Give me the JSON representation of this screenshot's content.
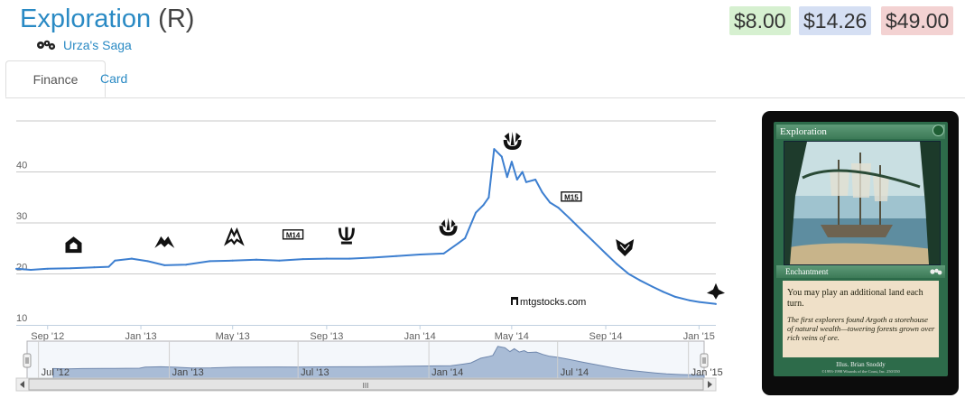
{
  "header": {
    "card_name": "Exploration",
    "rarity": "(R)",
    "set_name": "Urza's Saga",
    "set_icon": "urzas-saga-gears-icon"
  },
  "prices": {
    "low": "$8.00",
    "mid": "$14.26",
    "high": "$49.00",
    "colors": {
      "low": "#d6f0d0",
      "mid": "#d5dff3",
      "high": "#f3d2d2"
    }
  },
  "tabs": [
    "Finance",
    "Card"
  ],
  "card_image": {
    "name": "Exploration",
    "type_line": "Enchantment",
    "rules_text": "You may play an additional land each turn.",
    "flavor_text": "The first explorers found Argoth a storehouse of natural wealth—towering forests grown over rich veins of ore.",
    "illustrator": "Illus. Brian Snoddy",
    "copyright": "©1993-1998 Wizards of the Coast, Inc. 250/350",
    "frame_color": "green"
  },
  "chart_data": {
    "type": "line",
    "title": "",
    "xlabel": "",
    "ylabel": "",
    "xlim": [
      "2012-07-22",
      "2015-01-23"
    ],
    "ylim": [
      10,
      50
    ],
    "y_ticks": [
      10,
      20,
      30,
      40
    ],
    "x_ticks": [
      {
        "label": "Sep '12",
        "date": "2012-09-01"
      },
      {
        "label": "Jan '13",
        "date": "2013-01-01"
      },
      {
        "label": "May '13",
        "date": "2013-05-01"
      },
      {
        "label": "Sep '13",
        "date": "2013-09-01"
      },
      {
        "label": "Jan '14",
        "date": "2014-01-01"
      },
      {
        "label": "May '14",
        "date": "2014-05-01"
      },
      {
        "label": "Sep '14",
        "date": "2014-09-01"
      },
      {
        "label": "Jan '15",
        "date": "2015-01-01"
      }
    ],
    "grid": true,
    "line_color": "#3d7fd0",
    "series": [
      {
        "values": [
          [
            "2012-07-22",
            21.0
          ],
          [
            "2012-08-10",
            20.8
          ],
          [
            "2012-09-01",
            21.0
          ],
          [
            "2012-10-01",
            21.1
          ],
          [
            "2012-11-01",
            21.3
          ],
          [
            "2012-11-20",
            21.4
          ],
          [
            "2012-11-28",
            22.6
          ],
          [
            "2012-12-20",
            23.0
          ],
          [
            "2013-01-10",
            22.5
          ],
          [
            "2013-02-01",
            21.7
          ],
          [
            "2013-03-01",
            21.8
          ],
          [
            "2013-04-01",
            22.5
          ],
          [
            "2013-05-01",
            22.6
          ],
          [
            "2013-06-01",
            22.8
          ],
          [
            "2013-07-01",
            22.6
          ],
          [
            "2013-08-01",
            22.9
          ],
          [
            "2013-09-01",
            23.0
          ],
          [
            "2013-10-01",
            23.0
          ],
          [
            "2013-11-01",
            23.2
          ],
          [
            "2013-12-01",
            23.5
          ],
          [
            "2014-01-01",
            23.8
          ],
          [
            "2014-02-01",
            24.0
          ],
          [
            "2014-02-20",
            26.0
          ],
          [
            "2014-03-01",
            27.0
          ],
          [
            "2014-03-15",
            32.0
          ],
          [
            "2014-03-25",
            33.5
          ],
          [
            "2014-04-01",
            35.0
          ],
          [
            "2014-04-08",
            44.5
          ],
          [
            "2014-04-18",
            43.0
          ],
          [
            "2014-04-25",
            39.0
          ],
          [
            "2014-05-01",
            42.0
          ],
          [
            "2014-05-08",
            38.5
          ],
          [
            "2014-05-15",
            40.0
          ],
          [
            "2014-05-20",
            38.0
          ],
          [
            "2014-06-01",
            38.5
          ],
          [
            "2014-06-10",
            36.0
          ],
          [
            "2014-06-20",
            34.0
          ],
          [
            "2014-07-01",
            33.0
          ],
          [
            "2014-07-15",
            31.0
          ],
          [
            "2014-08-01",
            28.5
          ],
          [
            "2014-08-15",
            26.5
          ],
          [
            "2014-09-01",
            24.0
          ],
          [
            "2014-09-15",
            22.0
          ],
          [
            "2014-10-01",
            20.0
          ],
          [
            "2014-10-15",
            18.8
          ],
          [
            "2014-11-01",
            17.5
          ],
          [
            "2014-11-15",
            16.5
          ],
          [
            "2014-12-01",
            15.5
          ],
          [
            "2014-12-20",
            14.8
          ],
          [
            "2015-01-01",
            14.5
          ],
          [
            "2015-01-23",
            14.1
          ]
        ]
      }
    ],
    "set_release_markers": [
      {
        "set": "Return to Ravnica",
        "date": "2012-10-05"
      },
      {
        "set": "Gatecrash",
        "date": "2013-02-01"
      },
      {
        "set": "Dragon's Maze",
        "date": "2013-05-03"
      },
      {
        "set": "Magic 2014",
        "date": "2013-07-19"
      },
      {
        "set": "Theros",
        "date": "2013-09-27"
      },
      {
        "set": "Born of the Gods",
        "date": "2014-02-07"
      },
      {
        "set": "Journey into Nyx",
        "date": "2014-05-02"
      },
      {
        "set": "Magic 2015",
        "date": "2014-07-18"
      },
      {
        "set": "Khans of Tarkir",
        "date": "2014-09-26"
      },
      {
        "set": "Fate Reforged",
        "date": "2015-01-23"
      }
    ],
    "marker_labels": {
      "m14": "M14",
      "m15": "M15"
    },
    "watermark": "mtgstocks.com",
    "navigator": {
      "x_ticks": [
        {
          "label": "Jul '12",
          "date": "2012-07-01"
        },
        {
          "label": "Jan '13",
          "date": "2013-01-01"
        },
        {
          "label": "Jul '13",
          "date": "2013-07-01"
        },
        {
          "label": "Jan '14",
          "date": "2014-01-01"
        },
        {
          "label": "Jul '14",
          "date": "2014-07-01"
        },
        {
          "label": "Jan '15",
          "date": "2015-01-01"
        }
      ],
      "range_start": "2012-06-15",
      "range_end": "2015-01-23",
      "area_color": "#a9bcd6",
      "scrollbar_grip": "III"
    }
  }
}
